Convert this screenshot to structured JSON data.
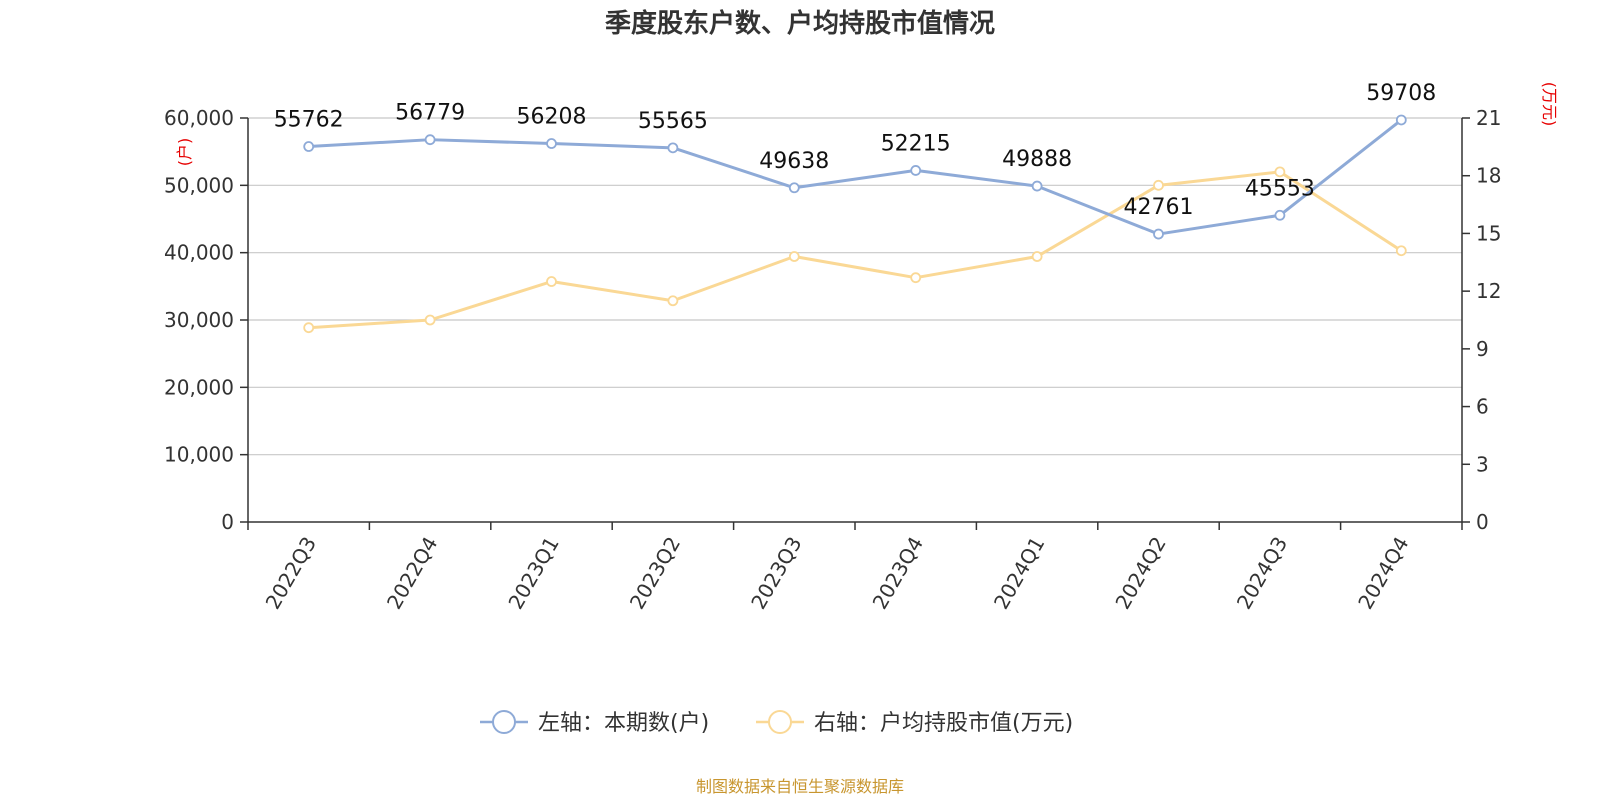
{
  "chart_data": {
    "type": "line",
    "title": "季度股东户数、户均持股市值情况",
    "categories": [
      "2022Q3",
      "2022Q4",
      "2023Q1",
      "2023Q2",
      "2023Q3",
      "2023Q4",
      "2024Q1",
      "2024Q2",
      "2024Q3",
      "2024Q4"
    ],
    "left_axis": {
      "unit": "(户)",
      "ylim": [
        0,
        60000
      ],
      "ticks": [
        "0",
        "10,000",
        "20,000",
        "30,000",
        "40,000",
        "50,000",
        "60,000"
      ],
      "tick_values": [
        0,
        10000,
        20000,
        30000,
        40000,
        50000,
        60000
      ]
    },
    "right_axis": {
      "unit": "(万元)",
      "ylim": [
        0,
        21
      ],
      "ticks": [
        "0",
        "3",
        "6",
        "9",
        "12",
        "15",
        "18",
        "21"
      ],
      "tick_values": [
        0,
        3,
        6,
        9,
        12,
        15,
        18,
        21
      ]
    },
    "series": [
      {
        "name": "左轴：本期数(户)",
        "axis": "left",
        "color": "#8eaad7",
        "values": [
          55762,
          56779,
          56208,
          55565,
          49638,
          52215,
          49888,
          42761,
          45553,
          59708
        ],
        "labels": [
          "55762",
          "56779",
          "56208",
          "55565",
          "49638",
          "52215",
          "49888",
          "42761",
          "45553",
          "59708"
        ]
      },
      {
        "name": "右轴：户均持股市值(万元)",
        "axis": "right",
        "color": "#fad895",
        "values": [
          10.1,
          10.5,
          12.5,
          11.5,
          13.8,
          12.7,
          13.8,
          17.5,
          18.2,
          14.1
        ]
      }
    ],
    "grid": true,
    "legend": "bottom-center"
  },
  "footer": {
    "source": "制图数据来自恒生聚源数据库"
  }
}
